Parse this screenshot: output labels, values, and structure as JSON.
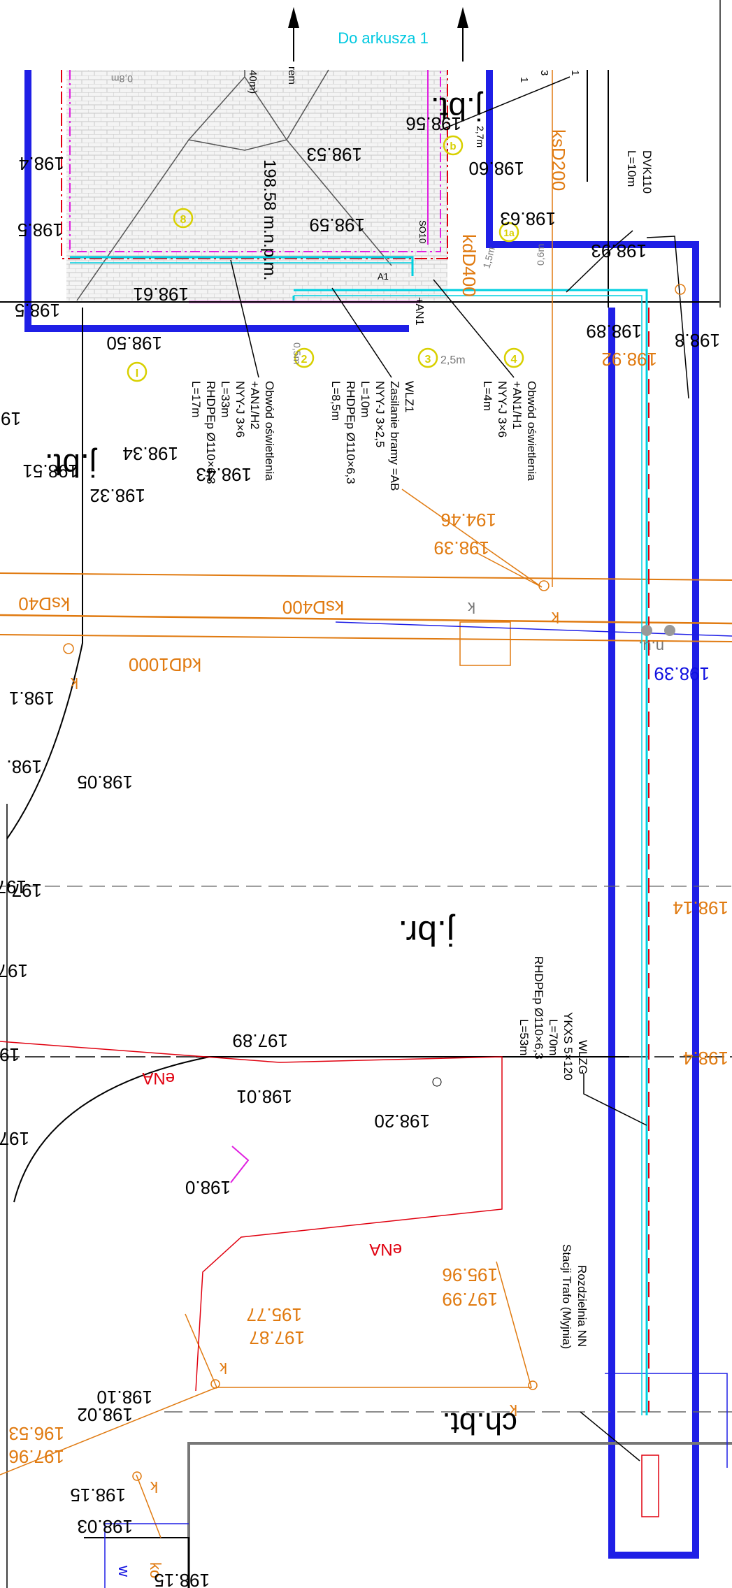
{
  "header": {
    "sheet_link": "Do arkusza 1"
  },
  "colors": {
    "boundary": "#1f1fe6",
    "cable": "#00d0e0",
    "utility_orange": "#e07a10",
    "energy_red": "#e0000f",
    "paving": "#cfcfcf",
    "building_magenta": "#e020e0",
    "marker_yellow": "#d8d000"
  },
  "markers": {
    "m1": "I",
    "m2": "2",
    "m3": "3",
    "m4": "4",
    "m8": "8",
    "m1a": "1a",
    "mb": "b"
  },
  "callouts": {
    "dvk": {
      "l1": "DVK110",
      "l2": "L=10m"
    },
    "lighting1": {
      "l1": "Obwód oświetlenia",
      "l2": "+AN1/H1",
      "l3": "NYY-J 3×6",
      "l4": "L=4m"
    },
    "wlz1": {
      "l1": "WLZ1",
      "l2": "Zasilanie bramy =AB",
      "l3": "NYY-J 3×2,5",
      "l4": "L=10m",
      "l5": "RHDPEp Ø110×6,3",
      "l6": "L=8,5m"
    },
    "lighting2": {
      "l1": "Obwód oświetlenia",
      "l2": "+AN1/H2",
      "l3": "NYY-J 3×6",
      "l4": "L=33m",
      "l5": "RHDPEp Ø110×6,3",
      "l6": "L=17m"
    },
    "wlzg": {
      "l1": "WLZG",
      "l2": "YKXS 5×120",
      "l3": "L=70m",
      "l4": "RHDPEp Ø110×6,3",
      "l5": "L=53m"
    },
    "rozdzielnia": {
      "l1": "Rozdzielnia NN",
      "l2": "Stacji Trafo (Myjnia)"
    }
  },
  "labels": {
    "jbt_top": "j.bt.",
    "jbt_left": "j.bt.",
    "jbr": "j.br.",
    "chbt": "ch.bt.",
    "mnp": "198.58 m.n.p.m.",
    "ksD200": "ksD200",
    "kdD400": "kdD400",
    "ksD400": "ksD400",
    "ksD40": "ksD40",
    "kdD1000": "kdD1000",
    "eNA1": "eNA",
    "eNA2": "eNA",
    "k1": "k",
    "k2": "k",
    "k3": "k",
    "k4": "k",
    "k5": "k",
    "k6": "k",
    "ko": "ko",
    "w": "w",
    "nu": "n.u.",
    "so10": "SO10",
    "an1": "+AN1",
    "a1": "A1",
    "d25": "2,5m",
    "d15": "1,5m",
    "d05": "0,5m",
    "d06": "0,6m",
    "d08": "0,8m",
    "d27": "2,7m",
    "rem": "rem",
    "m40": "40m)",
    "num_1a": "1",
    "num_1b": "1",
    "num_3": "3",
    "bang": "!i"
  },
  "elevations": {
    "e1": "198.56",
    "e2": "198.53",
    "e3": "198.60",
    "e4": "198.59",
    "e5": "198.63",
    "e6": "198.93",
    "e7": "198.61",
    "e8": "198.89",
    "e9": "198.50",
    "e10": "198.4",
    "e11": "198.5",
    "e12": "198.5",
    "e13": "198.8",
    "e14": "198.34",
    "e15": "198.51",
    "e16": "198.43",
    "e17": "198.32",
    "e18": "198.39",
    "e19": "198.1",
    "e20": "198.",
    "e21": "198.05",
    "e22": "197.",
    "e23": "197.89",
    "e24": "198.01",
    "e25": "198.20",
    "e26": "198.0",
    "e27": "198.10",
    "e28": "198.02",
    "e29": "198.15",
    "e30": "198.03",
    "e31": "198.15",
    "e32": "19",
    "e33": "197",
    "e34": "197",
    "e35": "19",
    "e36": "197."
  },
  "elevations_orange": {
    "o1": "198.92",
    "o2": "194.46",
    "o3": "198.39",
    "o4": "198.14",
    "o5": "198.4",
    "o6": "195.96",
    "o7": "197.99",
    "o8": "195.77",
    "o9": "197.87",
    "o10": "196.53",
    "o11": "197.96"
  }
}
